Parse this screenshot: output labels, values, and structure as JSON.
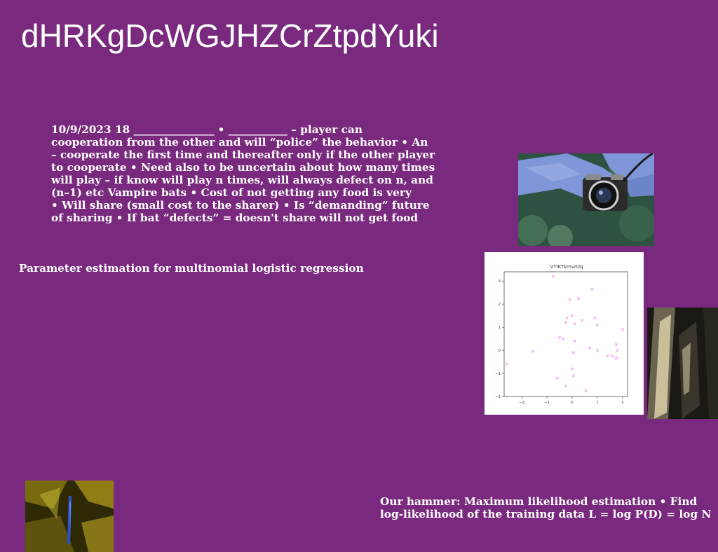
{
  "page": {
    "title": "dHRKgDcWGJHZCrZtpdYuki",
    "body_lines": [
      "10/9/2023 18 _______________ • ___________ – player can",
      "cooperation from the other  and will “police” the behavior • An",
      "– cooperate the first time and thereafter only if the other player",
      "to cooperate • Need also to be uncertain about how many times",
      "will play – if know will play n times, will always defect on n, and",
      "(n–1) etc Vampire bats • Cost of not getting any food is very",
      "• Will share (small cost to the sharer) • Is “demanding” future",
      "of sharing • If bat “defects” = doesn't share will not get food"
    ],
    "subheading": "Parameter estimation for multinomial logistic regression",
    "footer_lines": [
      "Our hammer: Maximum likelihood estimation • Find",
      "log-likelihood of the training data L = log P(D) = log N"
    ]
  },
  "colors": {
    "background": "#7a2a7e",
    "text": "#ffffff",
    "marker": "#e58ee8"
  },
  "chart_data": {
    "type": "scatter",
    "title": "VTIKTkmvrUq",
    "xlim": [
      -2.7,
      2.2
    ],
    "ylim": [
      -2,
      3.4
    ],
    "xticks": [
      -2,
      -1,
      0,
      1,
      2
    ],
    "yticks": [
      -2,
      -1,
      0,
      1,
      2,
      3
    ],
    "xtick_labels": [
      "−2",
      "−1",
      "0",
      "1",
      "2"
    ],
    "ytick_labels": [
      "−2",
      "−1",
      "0",
      "1",
      "2",
      "3"
    ],
    "marker": "x",
    "grid": false,
    "points": [
      {
        "x": -0.75,
        "y": 3.2
      },
      {
        "x": 0.8,
        "y": 2.65
      },
      {
        "x": -0.1,
        "y": 2.2
      },
      {
        "x": 0.25,
        "y": 2.25
      },
      {
        "x": -0.2,
        "y": 1.4
      },
      {
        "x": 0.0,
        "y": 1.5
      },
      {
        "x": -0.25,
        "y": 1.2
      },
      {
        "x": 0.1,
        "y": 1.15
      },
      {
        "x": 0.4,
        "y": 1.3
      },
      {
        "x": 0.9,
        "y": 1.4
      },
      {
        "x": 1.0,
        "y": 1.1
      },
      {
        "x": 2.0,
        "y": 0.9
      },
      {
        "x": -0.5,
        "y": 0.55
      },
      {
        "x": -0.35,
        "y": 0.5
      },
      {
        "x": 0.1,
        "y": 0.4
      },
      {
        "x": 0.7,
        "y": 0.1
      },
      {
        "x": 1.0,
        "y": 0.0
      },
      {
        "x": 1.75,
        "y": 0.25
      },
      {
        "x": 1.8,
        "y": 0.0
      },
      {
        "x": 1.4,
        "y": -0.25
      },
      {
        "x": 1.6,
        "y": -0.25
      },
      {
        "x": 1.75,
        "y": -0.35
      },
      {
        "x": -1.55,
        "y": -0.05
      },
      {
        "x": 0.05,
        "y": -0.1
      },
      {
        "x": -2.6,
        "y": -0.6
      },
      {
        "x": 0.0,
        "y": -0.8
      },
      {
        "x": 0.05,
        "y": -1.1
      },
      {
        "x": -0.6,
        "y": -1.2
      },
      {
        "x": -0.25,
        "y": -1.55
      },
      {
        "x": 0.55,
        "y": -1.75
      }
    ]
  }
}
